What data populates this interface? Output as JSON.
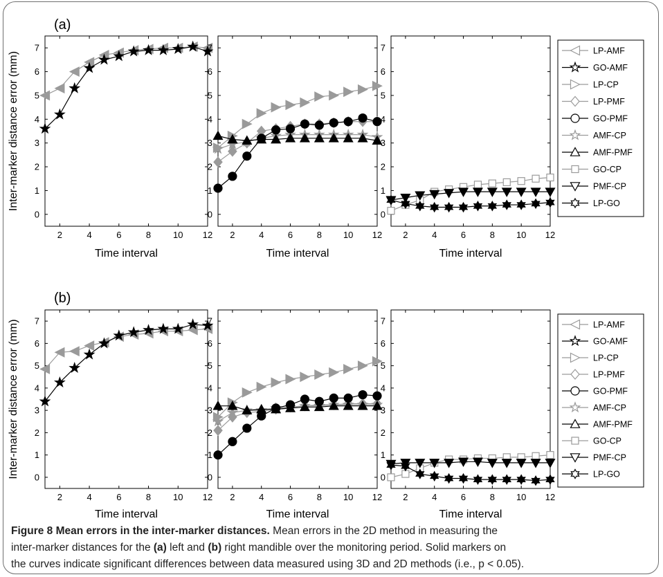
{
  "caption": {
    "title": "Figure 8 Mean errors in the inter-marker distances.",
    "line1_pre": " Mean errors in the 2D method in measuring the",
    "line2_pre": "inter-marker distances for the ",
    "label_a": "(a)",
    "line2_mid": " left and ",
    "label_b": "(b)",
    "line2_post": " right mandible over the monitoring period. Solid markers on",
    "line3": "the curves indicate significant differences between data measured using 3D and 2D methods (i.e., p < 0.05)."
  },
  "colors": {
    "gray": "#9a9a9a",
    "black": "#000000"
  },
  "chart_data": [
    {
      "type": "line",
      "panel": "(a)",
      "ylabel": "Inter-marker distance error (mm)",
      "xlabel": "Time interval",
      "x": [
        1,
        2,
        3,
        4,
        5,
        6,
        7,
        8,
        9,
        10,
        11,
        12
      ],
      "xlim": [
        1,
        12
      ],
      "ylim": [
        -0.5,
        7.5
      ],
      "xticks": [
        2,
        4,
        6,
        8,
        10,
        12
      ],
      "yticks": [
        0,
        1,
        2,
        3,
        4,
        5,
        6,
        7
      ],
      "subplots": [
        {
          "series": [
            {
              "name": "LP-AMF",
              "values": [
                5.0,
                5.3,
                6.0,
                6.4,
                6.7,
                6.8,
                6.9,
                6.95,
                7.0,
                7.0,
                7.05,
                7.0
              ],
              "solid": [
                1,
                1,
                1,
                1,
                1,
                1,
                1,
                1,
                1,
                1,
                1,
                1
              ]
            },
            {
              "name": "GO-AMF",
              "values": [
                3.6,
                4.2,
                5.3,
                6.15,
                6.5,
                6.65,
                6.85,
                6.9,
                6.9,
                6.95,
                7.05,
                6.85
              ],
              "solid": [
                1,
                1,
                1,
                1,
                1,
                1,
                1,
                1,
                1,
                1,
                1,
                1
              ]
            }
          ]
        },
        {
          "series": [
            {
              "name": "LP-CP",
              "values": [
                2.8,
                3.3,
                3.8,
                4.25,
                4.5,
                4.6,
                4.7,
                4.95,
                5.0,
                5.15,
                5.25,
                5.4
              ],
              "solid": [
                1,
                1,
                1,
                1,
                1,
                1,
                1,
                1,
                1,
                1,
                1,
                1
              ]
            },
            {
              "name": "LP-PMF",
              "values": [
                2.2,
                2.65,
                3.0,
                3.5,
                3.6,
                3.7,
                3.8,
                3.8,
                3.85,
                3.9,
                3.9,
                3.9
              ],
              "solid": [
                1,
                1,
                1,
                1,
                1,
                1,
                1,
                1,
                1,
                1,
                1,
                1
              ]
            },
            {
              "name": "AMF-CP",
              "values": [
                2.75,
                2.95,
                3.05,
                3.2,
                3.3,
                3.35,
                3.35,
                3.35,
                3.35,
                3.35,
                3.35,
                3.25
              ],
              "solid": [
                1,
                1,
                1,
                1,
                1,
                1,
                1,
                1,
                1,
                1,
                1,
                1
              ]
            },
            {
              "name": "GO-PMF",
              "values": [
                1.1,
                1.6,
                2.45,
                3.2,
                3.55,
                3.6,
                3.8,
                3.75,
                3.85,
                3.9,
                4.05,
                3.9
              ],
              "solid": [
                1,
                1,
                1,
                1,
                1,
                1,
                1,
                1,
                1,
                1,
                1,
                1
              ]
            },
            {
              "name": "AMF-PMF",
              "values": [
                3.3,
                3.15,
                3.1,
                3.15,
                3.15,
                3.2,
                3.2,
                3.2,
                3.2,
                3.2,
                3.2,
                3.1
              ],
              "solid": [
                1,
                1,
                1,
                1,
                1,
                1,
                1,
                1,
                1,
                1,
                1,
                1
              ]
            }
          ]
        },
        {
          "series": [
            {
              "name": "GO-CP",
              "values": [
                0.15,
                0.4,
                0.6,
                0.95,
                1.05,
                1.15,
                1.25,
                1.3,
                1.35,
                1.4,
                1.5,
                1.55
              ],
              "solid": [
                0,
                0,
                0,
                0,
                0,
                0,
                0,
                0,
                0,
                0,
                0,
                0
              ]
            },
            {
              "name": "PMF-CP",
              "values": [
                0.6,
                0.7,
                0.8,
                0.85,
                0.9,
                0.95,
                0.95,
                0.95,
                0.95,
                0.95,
                0.95,
                0.95
              ],
              "solid": [
                1,
                1,
                1,
                1,
                1,
                1,
                1,
                1,
                1,
                1,
                1,
                1
              ]
            },
            {
              "name": "LP-GO",
              "values": [
                0.6,
                0.45,
                0.35,
                0.3,
                0.3,
                0.3,
                0.35,
                0.35,
                0.4,
                0.4,
                0.45,
                0.5
              ],
              "solid": [
                1,
                1,
                1,
                1,
                1,
                1,
                1,
                1,
                1,
                1,
                1,
                1
              ]
            }
          ]
        }
      ]
    },
    {
      "type": "line",
      "panel": "(b)",
      "ylabel": "Inter-marker distance error (mm)",
      "xlabel": "Time interval",
      "x": [
        1,
        2,
        3,
        4,
        5,
        6,
        7,
        8,
        9,
        10,
        11,
        12
      ],
      "xlim": [
        1,
        12
      ],
      "ylim": [
        -0.5,
        7.5
      ],
      "xticks": [
        2,
        4,
        6,
        8,
        10,
        12
      ],
      "yticks": [
        0,
        1,
        2,
        3,
        4,
        5,
        6,
        7
      ],
      "subplots": [
        {
          "series": [
            {
              "name": "LP-AMF",
              "values": [
                4.85,
                5.6,
                5.65,
                5.9,
                6.05,
                6.3,
                6.4,
                6.45,
                6.55,
                6.55,
                6.6,
                6.65
              ],
              "solid": [
                1,
                1,
                1,
                1,
                1,
                1,
                1,
                1,
                1,
                1,
                1,
                1
              ]
            },
            {
              "name": "GO-AMF",
              "values": [
                3.4,
                4.25,
                4.9,
                5.5,
                6.0,
                6.35,
                6.5,
                6.6,
                6.65,
                6.65,
                6.85,
                6.8
              ],
              "solid": [
                1,
                1,
                1,
                1,
                1,
                1,
                1,
                1,
                1,
                1,
                1,
                1
              ]
            }
          ]
        },
        {
          "series": [
            {
              "name": "LP-CP",
              "values": [
                2.7,
                3.35,
                3.8,
                4.05,
                4.25,
                4.4,
                4.5,
                4.6,
                4.7,
                4.85,
                5.0,
                5.2
              ],
              "solid": [
                1,
                1,
                1,
                1,
                1,
                1,
                1,
                1,
                1,
                1,
                1,
                1
              ]
            },
            {
              "name": "LP-PMF",
              "values": [
                2.1,
                2.7,
                2.9,
                2.95,
                3.05,
                3.15,
                3.2,
                3.25,
                3.25,
                3.3,
                3.3,
                3.3
              ],
              "solid": [
                1,
                1,
                1,
                1,
                1,
                1,
                1,
                1,
                1,
                1,
                1,
                1
              ]
            },
            {
              "name": "AMF-CP",
              "values": [
                2.5,
                2.9,
                3.0,
                3.0,
                3.1,
                3.15,
                3.2,
                3.2,
                3.25,
                3.25,
                3.25,
                3.25
              ],
              "solid": [
                1,
                1,
                1,
                1,
                1,
                1,
                1,
                1,
                1,
                1,
                1,
                1
              ]
            },
            {
              "name": "GO-PMF",
              "values": [
                1.0,
                1.6,
                2.2,
                2.75,
                3.1,
                3.25,
                3.5,
                3.4,
                3.55,
                3.55,
                3.7,
                3.65
              ],
              "solid": [
                1,
                1,
                1,
                1,
                1,
                1,
                1,
                1,
                1,
                1,
                1,
                1
              ]
            },
            {
              "name": "AMF-PMF",
              "values": [
                3.2,
                3.2,
                3.0,
                3.05,
                3.05,
                3.1,
                3.15,
                3.15,
                3.2,
                3.2,
                3.2,
                3.2
              ],
              "solid": [
                1,
                1,
                1,
                1,
                1,
                1,
                1,
                1,
                1,
                1,
                1,
                1
              ]
            }
          ]
        },
        {
          "series": [
            {
              "name": "GO-CP",
              "values": [
                0.0,
                0.15,
                0.4,
                0.65,
                0.8,
                0.8,
                0.85,
                0.85,
                0.9,
                0.9,
                0.95,
                1.0
              ],
              "solid": [
                0,
                0,
                0,
                0,
                0,
                0,
                0,
                0,
                0,
                0,
                0,
                0
              ]
            },
            {
              "name": "PMF-CP",
              "values": [
                0.6,
                0.65,
                0.65,
                0.65,
                0.65,
                0.7,
                0.7,
                0.65,
                0.65,
                0.65,
                0.65,
                0.65
              ],
              "solid": [
                1,
                1,
                1,
                1,
                1,
                1,
                1,
                1,
                1,
                1,
                1,
                1
              ]
            },
            {
              "name": "LP-GO",
              "values": [
                0.55,
                0.5,
                0.15,
                0.05,
                -0.05,
                -0.05,
                -0.1,
                -0.1,
                -0.1,
                -0.1,
                -0.15,
                -0.1
              ],
              "solid": [
                1,
                1,
                1,
                1,
                1,
                1,
                1,
                1,
                1,
                1,
                1,
                1
              ]
            }
          ]
        }
      ]
    }
  ],
  "legend": [
    {
      "name": "LP-AMF",
      "marker": "triangle-left",
      "color": "gray"
    },
    {
      "name": "GO-AMF",
      "marker": "star",
      "color": "black"
    },
    {
      "name": "LP-CP",
      "marker": "triangle-right",
      "color": "gray"
    },
    {
      "name": "LP-PMF",
      "marker": "diamond",
      "color": "gray"
    },
    {
      "name": "GO-PMF",
      "marker": "circle",
      "color": "black"
    },
    {
      "name": "AMF-CP",
      "marker": "star",
      "color": "gray"
    },
    {
      "name": "AMF-PMF",
      "marker": "triangle-up",
      "color": "black"
    },
    {
      "name": "GO-CP",
      "marker": "square",
      "color": "gray"
    },
    {
      "name": "PMF-CP",
      "marker": "triangle-down",
      "color": "black"
    },
    {
      "name": "LP-GO",
      "marker": "hexagram",
      "color": "black"
    }
  ]
}
